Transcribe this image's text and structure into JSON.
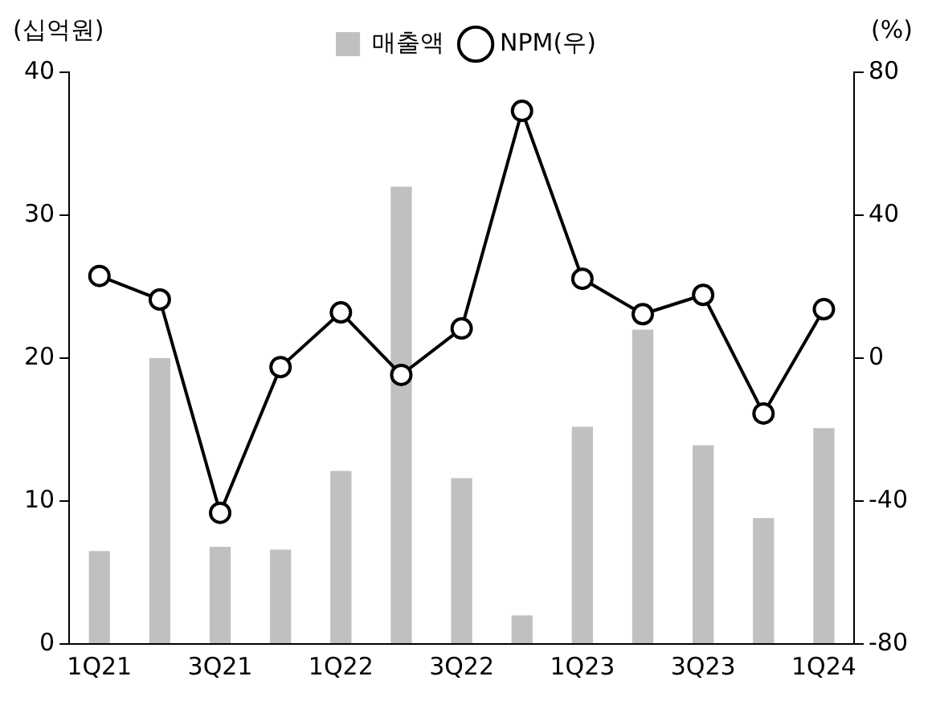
{
  "chart_data": {
    "type": "bar",
    "ylabel": "(십억원)",
    "y2label": "(%)",
    "categories": [
      "1Q21",
      null,
      "3Q21",
      null,
      "1Q22",
      null,
      "3Q22",
      null,
      "1Q23",
      null,
      "3Q23",
      null,
      "1Q24"
    ],
    "series": [
      {
        "name": "매출액",
        "color": "#c0c0c0",
        "values": [
          6.5,
          20,
          6.8,
          6.6,
          12.1,
          32,
          11.6,
          2,
          15.2,
          22,
          13.9,
          8.8,
          15.1
        ]
      },
      {
        "name": "NPM(우)",
        "type": "line",
        "axis": "y2",
        "color": "#000000",
        "marker": "circle",
        "values": [
          23,
          16.4,
          -43.3,
          -2.5,
          12.8,
          -4.7,
          8.3,
          69.2,
          22.2,
          12.3,
          17.7,
          -15.5,
          13.7
        ]
      }
    ],
    "ylim": [
      0,
      40
    ],
    "yticks": [
      0,
      10,
      20,
      30,
      40
    ],
    "y2lim": [
      -80,
      80
    ],
    "y2ticks": [
      -80,
      -40,
      0,
      40,
      80
    ],
    "grid": false,
    "legend": "top"
  }
}
